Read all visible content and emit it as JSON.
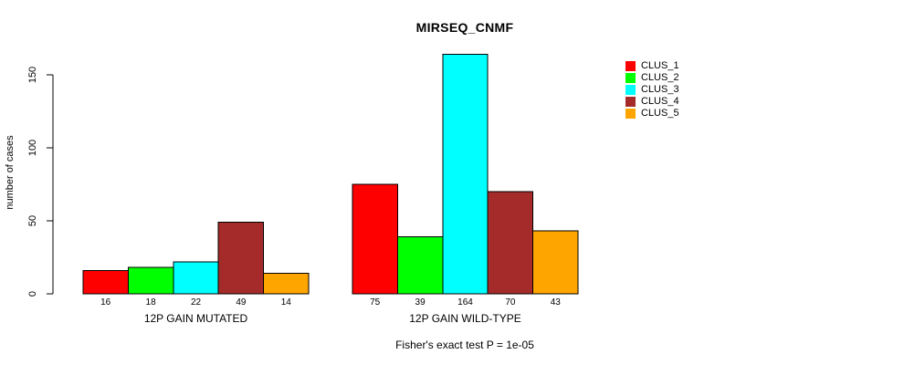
{
  "chart_data": {
    "type": "bar",
    "title": "MIRSEQ_CNMF",
    "ylabel": "number of cases",
    "xlabel": "",
    "yticks": [
      0,
      50,
      100,
      150
    ],
    "ylim": [
      0,
      170
    ],
    "grid": false,
    "legend_position": "top-right",
    "categories": [
      "12P GAIN MUTATED",
      "12P GAIN WILD-TYPE"
    ],
    "series": [
      {
        "name": "CLUS_1",
        "color": "#FF0000",
        "values": [
          16,
          75
        ]
      },
      {
        "name": "CLUS_2",
        "color": "#00FF00",
        "values": [
          18,
          39
        ]
      },
      {
        "name": "CLUS_3",
        "color": "#00FFFF",
        "values": [
          22,
          164
        ]
      },
      {
        "name": "CLUS_4",
        "color": "#A52A2A",
        "values": [
          49,
          70
        ]
      },
      {
        "name": "CLUS_5",
        "color": "#FFA500",
        "values": [
          14,
          43
        ]
      }
    ],
    "bar_value_labels": {
      "12P GAIN MUTATED": [
        16,
        18,
        22,
        49,
        14
      ],
      "12P GAIN WILD-TYPE": [
        75,
        39,
        164,
        70,
        43
      ]
    },
    "annotation": "Fisher's exact test P = 1e-05",
    "bar_border_color": "#000000",
    "axis_color": "#000000",
    "background_color": "#FFFFFF"
  },
  "legend": {
    "items": [
      {
        "label": "CLUS_1",
        "color": "#FF0000"
      },
      {
        "label": "CLUS_2",
        "color": "#00FF00"
      },
      {
        "label": "CLUS_3",
        "color": "#00FFFF"
      },
      {
        "label": "CLUS_4",
        "color": "#A52A2A"
      },
      {
        "label": "CLUS_5",
        "color": "#FFA500"
      }
    ]
  }
}
